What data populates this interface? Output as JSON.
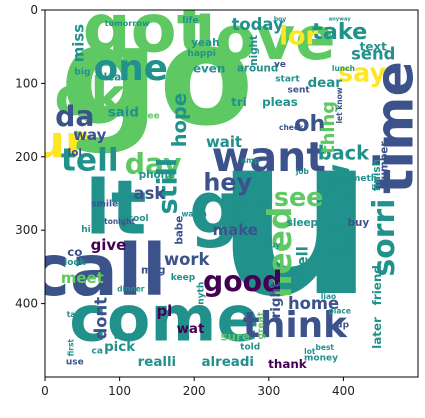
{
  "chart_data": {
    "type": "wordcloud",
    "title": "",
    "xlabel": "",
    "ylabel": "",
    "xlim": [
      0,
      500
    ],
    "ylim": [
      500,
      0
    ],
    "xticks": [
      0,
      100,
      200,
      300,
      400
    ],
    "yticks": [
      0,
      100,
      200,
      300,
      400
    ],
    "grid": false,
    "background": "#ffffff",
    "palette": [
      "#440154",
      "#3b528b",
      "#21918c",
      "#5ec962",
      "#fde725"
    ],
    "words": [
      {
        "text": "u",
        "x": 335,
        "y": 280,
        "size": 300,
        "color": "#21918c",
        "rot": 0
      },
      {
        "text": "go",
        "x": 150,
        "y": 90,
        "size": 185,
        "color": "#5ec962",
        "rot": 0
      },
      {
        "text": "got",
        "x": 135,
        "y": 25,
        "size": 90,
        "color": "#5ec962",
        "rot": 0
      },
      {
        "text": "love",
        "x": 295,
        "y": 40,
        "size": 80,
        "color": "#5ec962",
        "rot": 0
      },
      {
        "text": "call",
        "x": 70,
        "y": 355,
        "size": 95,
        "color": "#3b528b",
        "rot": 0
      },
      {
        "text": "come",
        "x": 160,
        "y": 420,
        "size": 85,
        "color": "#21918c",
        "rot": 0
      },
      {
        "text": "lt",
        "x": 95,
        "y": 270,
        "size": 100,
        "color": "#21918c",
        "rot": 0
      },
      {
        "text": "gt",
        "x": 250,
        "y": 270,
        "size": 95,
        "color": "#21918c",
        "rot": 0
      },
      {
        "text": "ok",
        "x": 60,
        "y": 120,
        "size": 70,
        "color": "#5ec962",
        "rot": 0
      },
      {
        "text": "ur",
        "x": 20,
        "y": 180,
        "size": 60,
        "color": "#fde725",
        "rot": 0
      },
      {
        "text": "time",
        "x": 470,
        "y": 160,
        "size": 70,
        "color": "#3b528b",
        "rot": 90
      },
      {
        "text": "want",
        "x": 300,
        "y": 200,
        "size": 55,
        "color": "#3b528b",
        "rot": 0
      },
      {
        "text": "think",
        "x": 335,
        "y": 430,
        "size": 48,
        "color": "#3b528b",
        "rot": 0
      },
      {
        "text": "need",
        "x": 315,
        "y": 330,
        "size": 44,
        "color": "#5ec962",
        "rot": 90
      },
      {
        "text": "know",
        "x": 395,
        "y": 270,
        "size": 40,
        "color": "#21918c",
        "rot": 90
      },
      {
        "text": "one",
        "x": 115,
        "y": 80,
        "size": 48,
        "color": "#21918c",
        "rot": 0
      },
      {
        "text": "tell",
        "x": 60,
        "y": 205,
        "size": 42,
        "color": "#21918c",
        "rot": 0
      },
      {
        "text": "day",
        "x": 145,
        "y": 210,
        "size": 38,
        "color": "#5ec962",
        "rot": 0
      },
      {
        "text": "good",
        "x": 265,
        "y": 370,
        "size": 38,
        "color": "#440154",
        "rot": 0
      },
      {
        "text": "sorri",
        "x": 455,
        "y": 310,
        "size": 40,
        "color": "#21918c",
        "rot": 90
      },
      {
        "text": "da",
        "x": 40,
        "y": 145,
        "size": 38,
        "color": "#3b528b",
        "rot": 0
      },
      {
        "text": "still",
        "x": 165,
        "y": 240,
        "size": 36,
        "color": "#21918c",
        "rot": 90
      },
      {
        "text": "hey",
        "x": 245,
        "y": 235,
        "size": 32,
        "color": "#3b528b",
        "rot": 0
      },
      {
        "text": "say",
        "x": 425,
        "y": 85,
        "size": 34,
        "color": "#fde725",
        "rot": 0
      },
      {
        "text": "see",
        "x": 340,
        "y": 255,
        "size": 34,
        "color": "#5ec962",
        "rot": 0
      },
      {
        "text": "take",
        "x": 395,
        "y": 30,
        "size": 30,
        "color": "#21918c",
        "rot": 0
      },
      {
        "text": "lor",
        "x": 340,
        "y": 35,
        "size": 34,
        "color": "#fde725",
        "rot": 0
      },
      {
        "text": "back",
        "x": 400,
        "y": 195,
        "size": 26,
        "color": "#21918c",
        "rot": 0
      },
      {
        "text": "home",
        "x": 360,
        "y": 400,
        "size": 22,
        "color": "#3b528b",
        "rot": 0
      },
      {
        "text": "hope",
        "x": 180,
        "y": 150,
        "size": 26,
        "color": "#21918c",
        "rot": 90
      },
      {
        "text": "send",
        "x": 440,
        "y": 60,
        "size": 22,
        "color": "#21918c",
        "rot": 0
      },
      {
        "text": "oh",
        "x": 355,
        "y": 155,
        "size": 30,
        "color": "#3b528b",
        "rot": 0
      },
      {
        "text": "thing",
        "x": 380,
        "y": 160,
        "size": 24,
        "color": "#5ec962",
        "rot": 90
      },
      {
        "text": "today",
        "x": 285,
        "y": 20,
        "size": 22,
        "color": "#21918c",
        "rot": 0
      },
      {
        "text": "miss",
        "x": 45,
        "y": 45,
        "size": 20,
        "color": "#21918c",
        "rot": 90
      },
      {
        "text": "dont",
        "x": 75,
        "y": 420,
        "size": 22,
        "color": "#3b528b",
        "rot": 90
      },
      {
        "text": "work",
        "x": 190,
        "y": 340,
        "size": 22,
        "color": "#3b528b",
        "rot": 0
      },
      {
        "text": "meet",
        "x": 50,
        "y": 365,
        "size": 20,
        "color": "#5ec962",
        "rot": 0
      },
      {
        "text": "make",
        "x": 255,
        "y": 300,
        "size": 20,
        "color": "#3b528b",
        "rot": 0
      },
      {
        "text": "ask",
        "x": 140,
        "y": 250,
        "size": 22,
        "color": "#3b528b",
        "rot": 0
      },
      {
        "text": "give",
        "x": 85,
        "y": 320,
        "size": 20,
        "color": "#440154",
        "rot": 0
      },
      {
        "text": "wait",
        "x": 240,
        "y": 180,
        "size": 20,
        "color": "#21918c",
        "rot": 0
      },
      {
        "text": "way",
        "x": 60,
        "y": 170,
        "size": 20,
        "color": "#3b528b",
        "rot": 0
      },
      {
        "text": "pl",
        "x": 160,
        "y": 410,
        "size": 20,
        "color": "#440154",
        "rot": 0
      },
      {
        "text": "realli",
        "x": 150,
        "y": 480,
        "size": 18,
        "color": "#21918c",
        "rot": 0
      },
      {
        "text": "alreadi",
        "x": 245,
        "y": 480,
        "size": 18,
        "color": "#21918c",
        "rot": 0
      },
      {
        "text": "thank",
        "x": 325,
        "y": 482,
        "size": 16,
        "color": "#440154",
        "rot": 0
      },
      {
        "text": "well",
        "x": 345,
        "y": 345,
        "size": 20,
        "color": "#21918c",
        "rot": 90
      },
      {
        "text": "right",
        "x": 310,
        "y": 395,
        "size": 18,
        "color": "#3b528b",
        "rot": 90
      },
      {
        "text": "said",
        "x": 105,
        "y": 140,
        "size": 18,
        "color": "#21918c",
        "rot": 0
      },
      {
        "text": "friend",
        "x": 445,
        "y": 375,
        "size": 16,
        "color": "#21918c",
        "rot": 90
      },
      {
        "text": "later",
        "x": 445,
        "y": 440,
        "size": 16,
        "color": "#21918c",
        "rot": 90
      },
      {
        "text": "sure",
        "x": 255,
        "y": 445,
        "size": 16,
        "color": "#5ec962",
        "rot": 0
      },
      {
        "text": "wat",
        "x": 195,
        "y": 435,
        "size": 18,
        "color": "#440154",
        "rot": 0
      },
      {
        "text": "pick",
        "x": 100,
        "y": 460,
        "size": 18,
        "color": "#21918c",
        "rot": 0
      },
      {
        "text": "tri",
        "x": 260,
        "y": 125,
        "size": 16,
        "color": "#21918c",
        "rot": 0
      },
      {
        "text": "even",
        "x": 220,
        "y": 80,
        "size": 16,
        "color": "#21918c",
        "rot": 0
      },
      {
        "text": "yeah",
        "x": 215,
        "y": 45,
        "size": 14,
        "color": "#21918c",
        "rot": 0
      },
      {
        "text": "dear",
        "x": 375,
        "y": 100,
        "size": 18,
        "color": "#21918c",
        "rot": 0
      },
      {
        "text": "text",
        "x": 440,
        "y": 50,
        "size": 16,
        "color": "#21918c",
        "rot": 0
      },
      {
        "text": "pleas",
        "x": 315,
        "y": 125,
        "size": 16,
        "color": "#21918c",
        "rot": 0
      },
      {
        "text": "around",
        "x": 285,
        "y": 80,
        "size": 14,
        "color": "#21918c",
        "rot": 0
      },
      {
        "text": "sleep",
        "x": 345,
        "y": 290,
        "size": 14,
        "color": "#21918c",
        "rot": 0
      },
      {
        "text": "number",
        "x": 455,
        "y": 210,
        "size": 14,
        "color": "#3b528b",
        "rot": 90
      },
      {
        "text": "finish",
        "x": 445,
        "y": 225,
        "size": 14,
        "color": "#21918c",
        "rot": 90
      },
      {
        "text": "someth",
        "x": 420,
        "y": 230,
        "size": 12,
        "color": "#21918c",
        "rot": 0
      },
      {
        "text": "phone",
        "x": 150,
        "y": 225,
        "size": 14,
        "color": "#21918c",
        "rot": 0
      },
      {
        "text": "smile",
        "x": 80,
        "y": 265,
        "size": 12,
        "color": "#3b528b",
        "rot": 0
      },
      {
        "text": "babe",
        "x": 180,
        "y": 300,
        "size": 14,
        "color": "#3b528b",
        "rot": 90
      },
      {
        "text": "leav",
        "x": 95,
        "y": 92,
        "size": 14,
        "color": "#21918c",
        "rot": 0
      },
      {
        "text": "lol",
        "x": 40,
        "y": 195,
        "size": 14,
        "color": "#3b528b",
        "rot": 0
      },
      {
        "text": "co",
        "x": 40,
        "y": 330,
        "size": 16,
        "color": "#3b528b",
        "rot": 0
      },
      {
        "text": "msg",
        "x": 145,
        "y": 355,
        "size": 14,
        "color": "#3b528b",
        "rot": 0
      },
      {
        "text": "money",
        "x": 370,
        "y": 475,
        "size": 12,
        "color": "#21918c",
        "rot": 0
      },
      {
        "text": "told",
        "x": 275,
        "y": 460,
        "size": 12,
        "color": "#21918c",
        "rot": 0
      },
      {
        "text": "anyth",
        "x": 210,
        "y": 390,
        "size": 12,
        "color": "#21918c",
        "rot": 90
      },
      {
        "text": "great",
        "x": 290,
        "y": 430,
        "size": 12,
        "color": "#5ec962",
        "rot": 90
      },
      {
        "text": "cool",
        "x": 125,
        "y": 285,
        "size": 12,
        "color": "#21918c",
        "rot": 0
      },
      {
        "text": "watch",
        "x": 200,
        "y": 278,
        "size": 10,
        "color": "#21918c",
        "rot": 0
      },
      {
        "text": "tomorrow",
        "x": 110,
        "y": 18,
        "size": 11,
        "color": "#21918c",
        "rot": 0
      },
      {
        "text": "life",
        "x": 195,
        "y": 15,
        "size": 12,
        "color": "#21918c",
        "rot": 0
      },
      {
        "text": "happi",
        "x": 210,
        "y": 60,
        "size": 12,
        "color": "#21918c",
        "rot": 0
      },
      {
        "text": "night",
        "x": 280,
        "y": 55,
        "size": 14,
        "color": "#21918c",
        "rot": 90
      },
      {
        "text": "start",
        "x": 325,
        "y": 95,
        "size": 12,
        "color": "#21918c",
        "rot": 0
      },
      {
        "text": "sent",
        "x": 340,
        "y": 110,
        "size": 12,
        "color": "#3b528b",
        "rot": 0
      },
      {
        "text": "let know",
        "x": 395,
        "y": 130,
        "size": 10,
        "color": "#3b528b",
        "rot": 90
      },
      {
        "text": "check",
        "x": 330,
        "y": 160,
        "size": 10,
        "color": "#3b528b",
        "rot": 0
      },
      {
        "text": "tonight",
        "x": 100,
        "y": 288,
        "size": 10,
        "color": "#3b528b",
        "rot": 0
      },
      {
        "text": "buy",
        "x": 420,
        "y": 290,
        "size": 14,
        "color": "#3b528b",
        "rot": 0
      },
      {
        "text": "yup",
        "x": 395,
        "y": 430,
        "size": 12,
        "color": "#3b528b",
        "rot": 0
      },
      {
        "text": "use",
        "x": 40,
        "y": 480,
        "size": 12,
        "color": "#3b528b",
        "rot": 0
      },
      {
        "text": "ve",
        "x": 315,
        "y": 75,
        "size": 12,
        "color": "#3b528b",
        "rot": 0
      },
      {
        "text": "big",
        "x": 50,
        "y": 85,
        "size": 12,
        "color": "#21918c",
        "rot": 0
      },
      {
        "text": "keep",
        "x": 185,
        "y": 365,
        "size": 12,
        "color": "#21918c",
        "rot": 0
      },
      {
        "text": "liao",
        "x": 380,
        "y": 390,
        "size": 10,
        "color": "#21918c",
        "rot": 0
      },
      {
        "text": "lunch",
        "x": 400,
        "y": 80,
        "size": 10,
        "color": "#21918c",
        "rot": 0
      },
      {
        "text": "look",
        "x": 40,
        "y": 345,
        "size": 12,
        "color": "#21918c",
        "rot": 0
      },
      {
        "text": "free",
        "x": 140,
        "y": 145,
        "size": 12,
        "color": "#5ec962",
        "rot": 0
      },
      {
        "text": "job",
        "x": 345,
        "y": 220,
        "size": 10,
        "color": "#21918c",
        "rot": 0
      },
      {
        "text": "amp",
        "x": 275,
        "y": 205,
        "size": 10,
        "color": "#21918c",
        "rot": 0
      },
      {
        "text": "guy",
        "x": 305,
        "y": 320,
        "size": 10,
        "color": "#21918c",
        "rot": 0
      },
      {
        "text": "wish",
        "x": 105,
        "y": 445,
        "size": 10,
        "color": "#21918c",
        "rot": 0
      },
      {
        "text": "first",
        "x": 35,
        "y": 460,
        "size": 10,
        "color": "#21918c",
        "rot": 90
      },
      {
        "text": "dinner",
        "x": 115,
        "y": 380,
        "size": 10,
        "color": "#21918c",
        "rot": 0
      },
      {
        "text": "place",
        "x": 395,
        "y": 410,
        "size": 10,
        "color": "#21918c",
        "rot": 0
      },
      {
        "text": "best",
        "x": 375,
        "y": 460,
        "size": 10,
        "color": "#21918c",
        "rot": 0
      },
      {
        "text": "lot",
        "x": 355,
        "y": 465,
        "size": 10,
        "color": "#21918c",
        "rot": 0
      },
      {
        "text": "talk",
        "x": 40,
        "y": 415,
        "size": 10,
        "color": "#21918c",
        "rot": 0
      },
      {
        "text": "ca",
        "x": 70,
        "y": 465,
        "size": 12,
        "color": "#21918c",
        "rot": 0
      },
      {
        "text": "hi",
        "x": 55,
        "y": 300,
        "size": 12,
        "color": "#21918c",
        "rot": 0
      },
      {
        "text": "boy",
        "x": 315,
        "y": 13,
        "size": 8,
        "color": "#21918c",
        "rot": 0
      },
      {
        "text": "anyway",
        "x": 395,
        "y": 13,
        "size": 7,
        "color": "#21918c",
        "rot": 0
      }
    ]
  }
}
